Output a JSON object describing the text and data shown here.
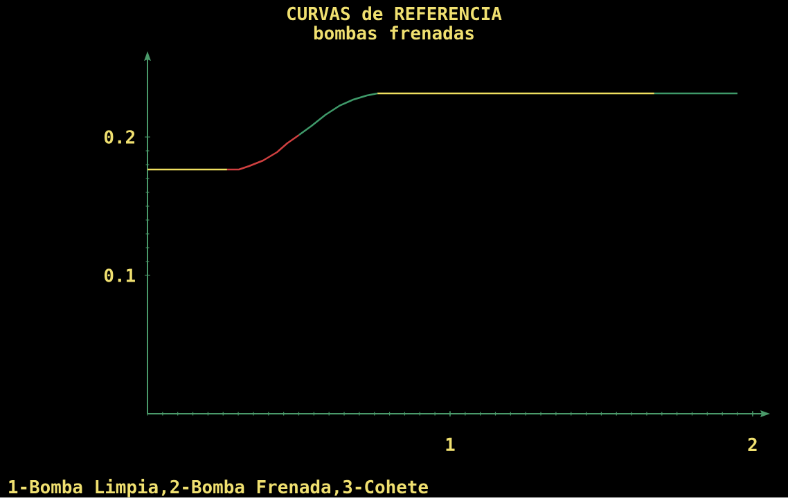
{
  "chart_data": {
    "type": "line",
    "title": "CURVAS de REFERENCIA",
    "subtitle": "bombas frenadas",
    "annotations": [
      "1-Bomba Limpia,2-Bomba Frenada,3-Cohete"
    ],
    "xlim": [
      0,
      2.03
    ],
    "ylim": [
      0,
      0.256
    ],
    "xticks": [
      1,
      2
    ],
    "yticks": [
      0.1,
      0.2
    ],
    "grid": false,
    "marker": "none",
    "line_style": "solid",
    "series": [
      {
        "color": "#f0e060",
        "x": [
          0,
          0.263,
          0.5,
          0.76,
          1.675
        ],
        "values": [
          0.1765,
          0.1765,
          null,
          0.2315,
          0.2315
        ]
      },
      {
        "color": "#d04040",
        "x": [
          0.263,
          0.302,
          0.336,
          0.382,
          0.428,
          0.462,
          0.485,
          0.501
        ],
        "values": [
          0.1765,
          0.1765,
          0.179,
          0.183,
          0.189,
          0.1955,
          0.199,
          0.2015
        ]
      },
      {
        "color": "#3f9a6a",
        "x": [
          0.501,
          0.542,
          0.588,
          0.634,
          0.68,
          0.725,
          0.76,
          1.2,
          1.675,
          1.95
        ],
        "values": [
          0.2015,
          0.208,
          0.216,
          0.2225,
          0.227,
          0.23,
          0.2315,
          null,
          0.2315,
          0.2315
        ]
      }
    ]
  }
}
